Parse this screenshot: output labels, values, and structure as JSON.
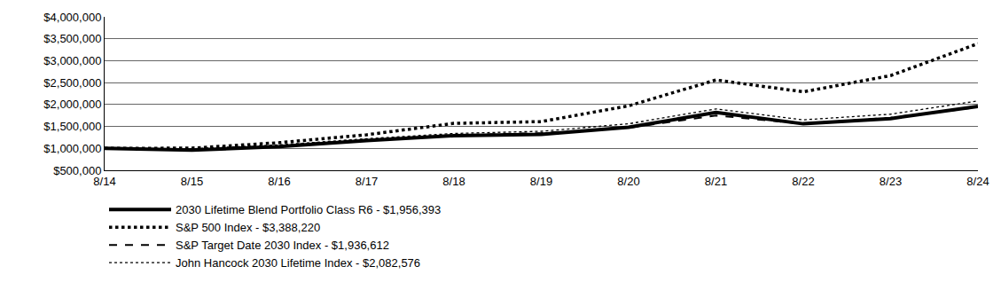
{
  "chart_data": {
    "type": "line",
    "categories": [
      "8/14",
      "8/15",
      "8/16",
      "8/17",
      "8/18",
      "8/19",
      "8/20",
      "8/21",
      "8/22",
      "8/23",
      "8/24"
    ],
    "series": [
      {
        "name": "2030 Lifetime Blend Portfolio Class R6 - $1,956,393",
        "color": "#000000",
        "line_style": "heavy_solid",
        "values": [
          1000000,
          960000,
          1040000,
          1180000,
          1290000,
          1320000,
          1480000,
          1820000,
          1560000,
          1680000,
          1956393
        ]
      },
      {
        "name": "S&P 500 Index - $3,388,220",
        "color": "#000000",
        "line_style": "heavy_dot",
        "values": [
          1000000,
          1005000,
          1130000,
          1310000,
          1570000,
          1610000,
          1970000,
          2560000,
          2290000,
          2660000,
          3388220
        ]
      },
      {
        "name": "S&P Target Date 2030 Index - $1,936,612",
        "color": "#000000",
        "line_style": "dash",
        "values": [
          1000000,
          980000,
          1060000,
          1200000,
          1300000,
          1350000,
          1470000,
          1750000,
          1560000,
          1700000,
          1936612
        ]
      },
      {
        "name": "John Hancock 2030 Lifetime Index - $2,082,576",
        "color": "#000000",
        "line_style": "thin_dot",
        "values": [
          1000000,
          990000,
          1080000,
          1220000,
          1340000,
          1390000,
          1560000,
          1900000,
          1650000,
          1780000,
          2082576
        ]
      }
    ],
    "ylim": [
      500000,
      4000000
    ],
    "yticks": [
      {
        "value": 500000,
        "label": "$500,000"
      },
      {
        "value": 1000000,
        "label": "$1,000,000"
      },
      {
        "value": 1500000,
        "label": "$1,500,000"
      },
      {
        "value": 2000000,
        "label": "$2,000,000"
      },
      {
        "value": 2500000,
        "label": "$2,500,000"
      },
      {
        "value": 3000000,
        "label": "$3,000,000"
      },
      {
        "value": 3500000,
        "label": "$3,500,000"
      },
      {
        "value": 4000000,
        "label": "$4,000,000"
      }
    ],
    "grid": true,
    "legend": "bottom left"
  }
}
